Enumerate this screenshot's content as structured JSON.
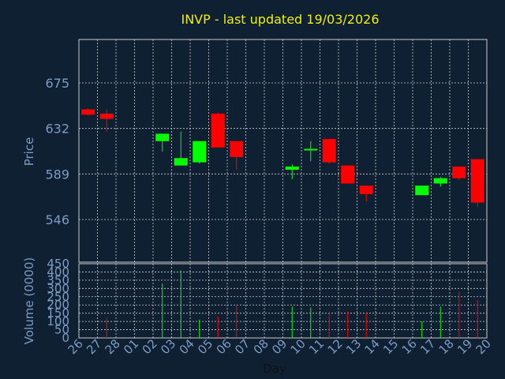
{
  "chart_data": {
    "type": "candlestick",
    "title": "INVP - last updated 19/03/2026",
    "xlabel": "Day",
    "ylabel": "Price",
    "volume_label": "Volume (0000)",
    "x": [
      "26",
      "27",
      "28",
      "01",
      "02",
      "03",
      "04",
      "05",
      "06",
      "07",
      "08",
      "09",
      "10",
      "11",
      "12",
      "13",
      "14",
      "15",
      "16",
      "17",
      "18",
      "19",
      "20"
    ],
    "price_ticks": [
      546,
      589,
      632,
      675
    ],
    "volume_ticks": [
      0,
      50,
      100,
      150,
      200,
      250,
      300,
      350,
      400,
      450
    ],
    "grid": true,
    "colors": {
      "background": "#0f2033",
      "up": "#00ff00",
      "down": "#ff0000",
      "title": "#f0f000",
      "axis_text": "#7d9bc3"
    },
    "series": [
      {
        "x": "26",
        "open": 650,
        "high": 651,
        "low": 644,
        "close": 645,
        "volume": 0
      },
      {
        "x": "27",
        "open": 646,
        "high": 650,
        "low": 629,
        "close": 641,
        "volume": 120
      },
      {
        "x": "02",
        "open": 620,
        "high": 627,
        "low": 610,
        "close": 627,
        "volume": 330
      },
      {
        "x": "03",
        "open": 597,
        "high": 629,
        "low": 597,
        "close": 604,
        "volume": 410
      },
      {
        "x": "04",
        "open": 600,
        "high": 620,
        "low": 599,
        "close": 620,
        "volume": 110
      },
      {
        "x": "05",
        "open": 646,
        "high": 647,
        "low": 614,
        "close": 614,
        "volume": 130
      },
      {
        "x": "06",
        "open": 620,
        "high": 620,
        "low": 593,
        "close": 605,
        "volume": 200
      },
      {
        "x": "09",
        "open": 593,
        "high": 598,
        "low": 584,
        "close": 596,
        "volume": 190
      },
      {
        "x": "10",
        "open": 611,
        "high": 620,
        "low": 601,
        "close": 612,
        "volume": 185
      },
      {
        "x": "11",
        "open": 622,
        "high": 622,
        "low": 599,
        "close": 600,
        "volume": 150
      },
      {
        "x": "12",
        "open": 597,
        "high": 597,
        "low": 580,
        "close": 580,
        "volume": 160
      },
      {
        "x": "13",
        "open": 578,
        "high": 578,
        "low": 563,
        "close": 570,
        "volume": 150
      },
      {
        "x": "16",
        "open": 569,
        "high": 578,
        "low": 569,
        "close": 578,
        "volume": 100
      },
      {
        "x": "17",
        "open": 580,
        "high": 586,
        "low": 577,
        "close": 585,
        "volume": 190
      },
      {
        "x": "18",
        "open": 596,
        "high": 596,
        "low": 583,
        "close": 585,
        "volume": 280
      },
      {
        "x": "19",
        "open": 603,
        "high": 603,
        "low": 558,
        "close": 562,
        "volume": 230
      }
    ]
  }
}
